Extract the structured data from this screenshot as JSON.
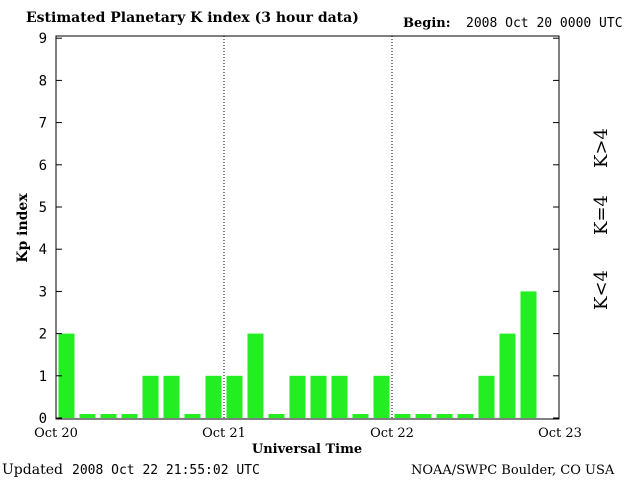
{
  "header": {
    "title": "Estimated Planetary K index (3 hour data)",
    "begin_label": "Begin:",
    "begin_value": "2008 Oct 20 0000 UTC"
  },
  "footer": {
    "updated_label": "Updated",
    "updated_value": "2008 Oct 22 21:55:02 UTC",
    "source": "NOAA/SWPC Boulder, CO USA"
  },
  "legend": {
    "high": "K>4",
    "equal": "K=4",
    "low": "K<4"
  },
  "colors": {
    "low": "#22ee22",
    "equal": "#ffcc00",
    "high": "#ee2200",
    "frame": "#000000"
  },
  "chart_data": {
    "type": "bar",
    "title": "Estimated Planetary K index (3 hour data)",
    "xlabel": "Universal Time",
    "ylabel": "Kp index",
    "ylim": [
      0,
      9
    ],
    "yticks": [
      0,
      1,
      2,
      3,
      4,
      5,
      6,
      7,
      8,
      9
    ],
    "x_ticks": [
      "Oct 20",
      "Oct 21",
      "Oct 22",
      "Oct 23"
    ],
    "bars_per_day": 8,
    "grid": "dotted vertical day separators",
    "values": [
      2,
      0,
      0,
      0,
      1,
      1,
      0,
      1,
      1,
      2,
      0,
      1,
      1,
      1,
      0,
      1,
      0,
      0,
      0,
      0,
      1,
      2,
      3
    ]
  }
}
